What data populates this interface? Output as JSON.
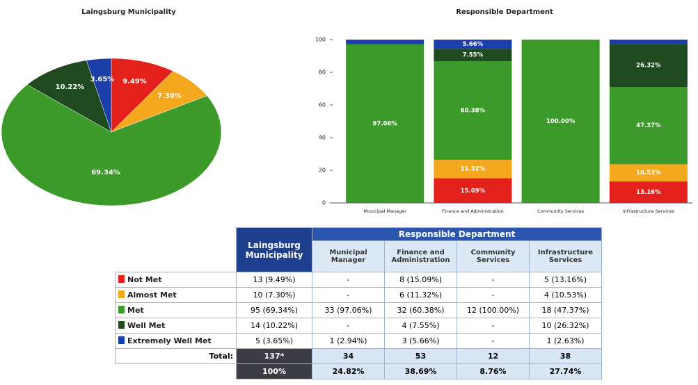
{
  "chart_data": [
    {
      "type": "pie",
      "title": "Laingsburg Municipality",
      "values": [
        9.49,
        7.3,
        69.34,
        10.22,
        3.65
      ],
      "value_labels": [
        "9.49%",
        "7.30%",
        "69.34%",
        "10.22%",
        "3.65%"
      ],
      "colors": [
        "#e3201b",
        "#f4a81d",
        "#3c9a2b",
        "#1f4a1f",
        "#1a3fa8"
      ]
    },
    {
      "type": "bar",
      "stacked": true,
      "title": "Responsible Department",
      "categories": [
        "Municipal Manager",
        "Finance and Administration",
        "Community Services",
        "Infrastructure Services"
      ],
      "series": [
        {
          "color": "#e3201b",
          "values": [
            0,
            15.09,
            0,
            13.16
          ],
          "value_labels": [
            null,
            "15.09%",
            null,
            "13.16%"
          ]
        },
        {
          "color": "#f4a81d",
          "values": [
            0,
            11.32,
            0,
            10.53
          ],
          "value_labels": [
            null,
            "11.32%",
            null,
            "10.53%"
          ]
        },
        {
          "color": "#3c9a2b",
          "values": [
            97.06,
            60.38,
            100,
            47.37
          ],
          "value_labels": [
            "97.06%",
            "60.38%",
            "100.00%",
            "47.37%"
          ]
        },
        {
          "color": "#1f4a1f",
          "values": [
            0,
            7.55,
            0,
            26.32
          ],
          "value_labels": [
            null,
            "7.55%",
            null,
            "26.32%"
          ]
        },
        {
          "color": "#1a3fa8",
          "values": [
            2.94,
            5.66,
            0,
            2.63
          ],
          "value_labels": [
            null,
            "5.66%",
            null,
            null
          ]
        }
      ],
      "ylim": [
        0,
        100
      ],
      "yticks": [
        0,
        20,
        40,
        60,
        80,
        100
      ]
    }
  ],
  "table": {
    "group_header": "Responsible Department",
    "columns": [
      "Laingsburg Municipality",
      "Municipal Manager",
      "Finance and Administration",
      "Community Services",
      "Infrastructure Services"
    ],
    "rows": [
      {
        "label": "Not Met",
        "cells": [
          "13 (9.49%)",
          "-",
          "8 (15.09%)",
          "-",
          "5 (13.16%)"
        ]
      },
      {
        "label": "Almost Met",
        "cells": [
          "10 (7.30%)",
          "-",
          "6 (11.32%)",
          "-",
          "4 (10.53%)"
        ]
      },
      {
        "label": "Met",
        "cells": [
          "95 (69.34%)",
          "33 (97.06%)",
          "32 (60.38%)",
          "12 (100.00%)",
          "18 (47.37%)"
        ]
      },
      {
        "label": "Well Met",
        "cells": [
          "14 (10.22%)",
          "-",
          "4 (7.55%)",
          "-",
          "10 (26.32%)"
        ]
      },
      {
        "label": "Extremely Well Met",
        "cells": [
          "5 (3.65%)",
          "1 (2.94%)",
          "3 (5.66%)",
          "-",
          "1 (2.63%)"
        ]
      }
    ],
    "total": {
      "label": "Total:",
      "cells": [
        "137*",
        "34",
        "53",
        "12",
        "38"
      ]
    },
    "percent": [
      "100%",
      "24.82%",
      "38.69%",
      "8.76%",
      "27.74%"
    ]
  }
}
